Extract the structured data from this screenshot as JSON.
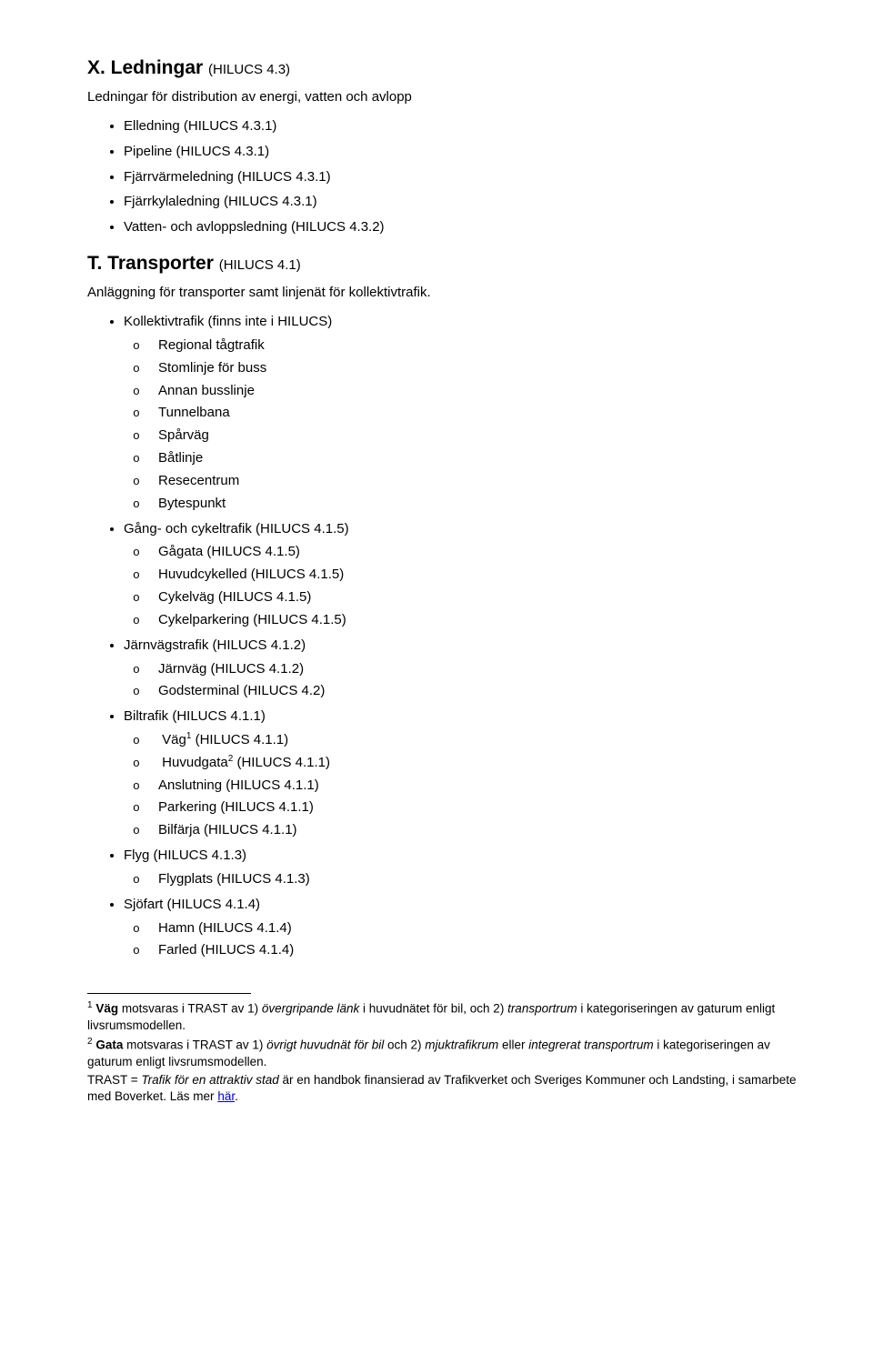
{
  "sections": {
    "x": {
      "heading_prefix": "X. Ledningar",
      "heading_paren": "(HILUCS 4.3)",
      "intro": "Ledningar för distribution av energi, vatten och avlopp",
      "items": [
        {
          "label": "Elledning (HILUCS 4.3.1)"
        },
        {
          "label": "Pipeline (HILUCS  4.3.1)"
        },
        {
          "label": "Fjärrvärmeledning (HILUCS 4.3.1)"
        },
        {
          "label": "Fjärrkylaledning (HILUCS 4.3.1)"
        },
        {
          "label": "Vatten- och avloppsledning (HILUCS 4.3.2)"
        }
      ]
    },
    "t": {
      "heading_prefix": "T. Transporter",
      "heading_paren": "(HILUCS 4.1)",
      "intro": "Anläggning för transporter samt linjenät för kollektivtrafik.",
      "items": [
        {
          "label": "Kollektivtrafik (finns inte i HILUCS)",
          "children": [
            "Regional tågtrafik",
            "Stomlinje för buss",
            "Annan busslinje",
            "Tunnelbana",
            "Spårväg",
            "Båtlinje",
            "Resecentrum",
            "Bytespunkt"
          ]
        },
        {
          "label": "Gång- och cykeltrafik (HILUCS 4.1.5)",
          "children": [
            "Gågata (HILUCS 4.1.5)",
            "Huvudcykelled (HILUCS 4.1.5)",
            "Cykelväg (HILUCS 4.1.5)",
            "Cykelparkering (HILUCS 4.1.5)"
          ]
        },
        {
          "label": "Järnvägstrafik (HILUCS 4.1.2)",
          "children": [
            "Järnväg (HILUCS 4.1.2)",
            "Godsterminal (HILUCS 4.2)"
          ]
        },
        {
          "label": "Biltrafik (HILUCS 4.1.1)",
          "children_special": [
            {
              "pre": "Väg",
              "sup": "1",
              "post": " (HILUCS 4.1.1)"
            },
            {
              "pre": "Huvudgata",
              "sup": "2",
              "post": " (HILUCS 4.1.1)"
            },
            {
              "pre": "Anslutning (HILUCS 4.1.1)"
            },
            {
              "pre": "Parkering (HILUCS 4.1.1)"
            },
            {
              "pre": "Bilfärja (HILUCS 4.1.1)"
            }
          ]
        },
        {
          "label": "Flyg (HILUCS 4.1.3)",
          "children": [
            "Flygplats (HILUCS 4.1.3)"
          ]
        },
        {
          "label": "Sjöfart (HILUCS 4.1.4)",
          "children": [
            "Hamn (HILUCS 4.1.4)",
            "Farled (HILUCS 4.1.4)"
          ]
        }
      ]
    }
  },
  "footnotes": {
    "fn1_sup": "1",
    "fn1_a": " ",
    "fn1_bold1": "Väg",
    "fn1_b": " motsvaras i TRAST av 1) ",
    "fn1_it1": "övergripande länk",
    "fn1_c": " i huvudnätet för bil, och 2) ",
    "fn1_it2": "transportrum",
    "fn1_d": " i kategoriseringen av gaturum enligt livsrumsmodellen.",
    "fn2_sup": "2",
    "fn2_a": " ",
    "fn2_bold1": "Gata",
    "fn2_b": " motsvaras i TRAST av 1) ",
    "fn2_it1": "övrigt huvudnät för bil",
    "fn2_c": " och 2) ",
    "fn2_it2": "mjuktrafikrum",
    "fn2_d": " eller ",
    "fn2_it3": "integrerat transportrum",
    "fn2_e": " i kategoriseringen av gaturum enligt livsrumsmodellen.",
    "fn3_a": "TRAST = ",
    "fn3_it1": "Trafik för en attraktiv stad",
    "fn3_b": " är en handbok finansierad av Trafikverket och Sveriges Kommuner och Landsting, i samarbete med Boverket. Läs mer ",
    "fn3_link": "här",
    "fn3_c": "."
  }
}
